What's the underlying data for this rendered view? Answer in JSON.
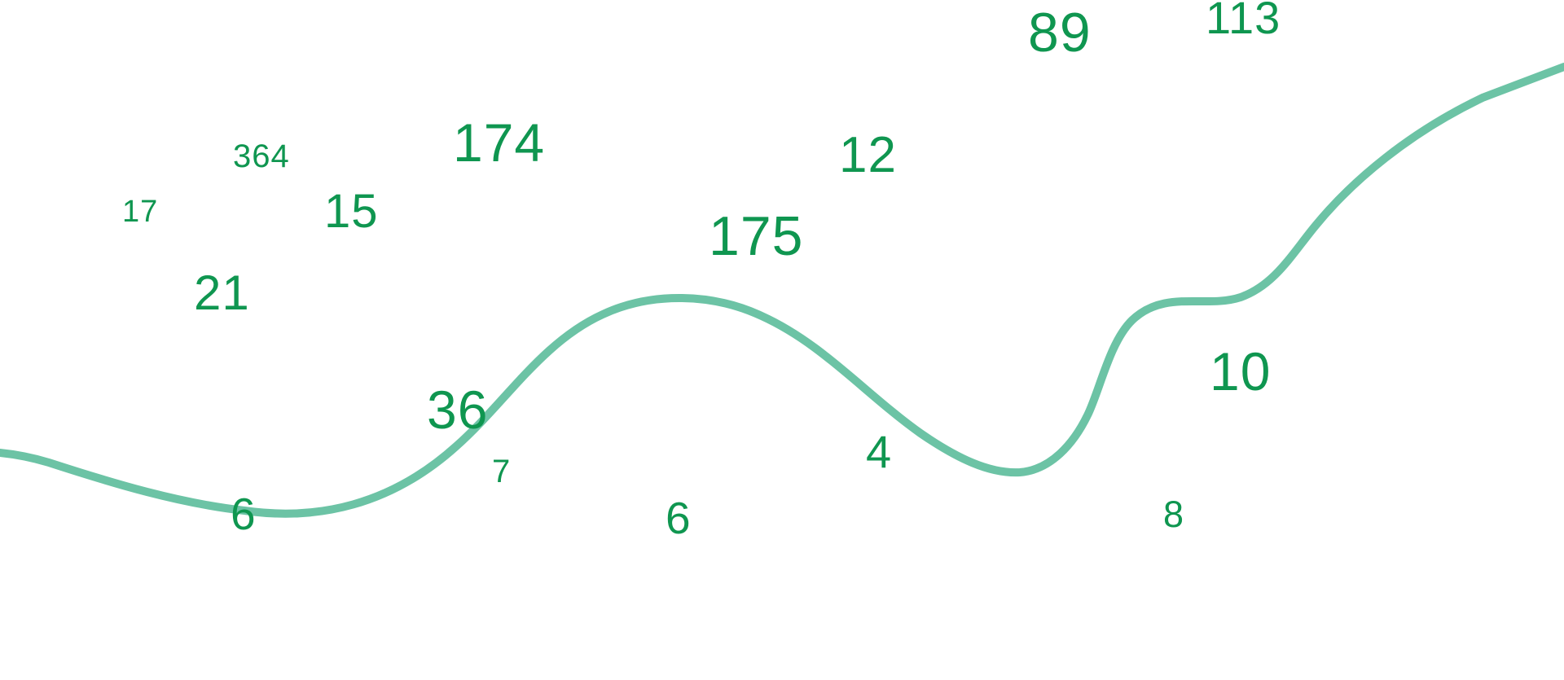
{
  "colors": {
    "number": "#0f9650",
    "curve": "#6cc3a5"
  },
  "numbers": [
    "89",
    "113",
    "174",
    "364",
    "12",
    "17",
    "15",
    "175",
    "21",
    "10",
    "36",
    "7",
    "4",
    "6",
    "6",
    "8"
  ]
}
